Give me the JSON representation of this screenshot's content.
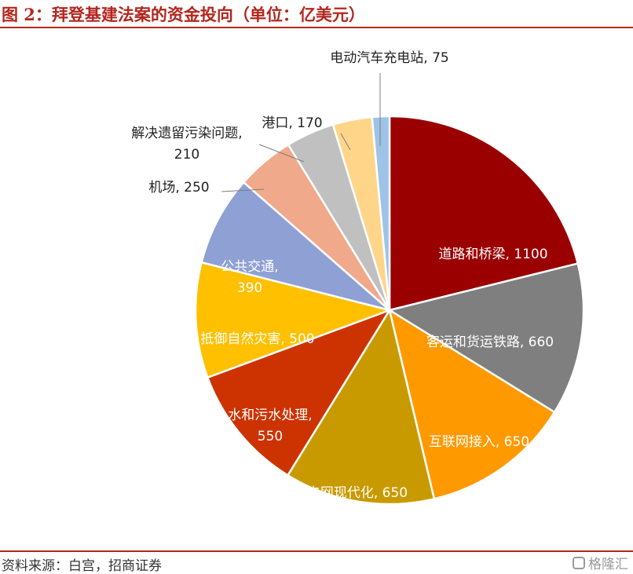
{
  "title": "图 2：拜登基建法案的资金投向（单位：亿美元）",
  "source": "资料来源：白宫，招商证券",
  "watermark": "格隆汇",
  "chart_data": {
    "type": "pie",
    "title": "图 2：拜登基建法案的资金投向（单位：亿美元）",
    "slices": [
      {
        "label": "道路和桥梁",
        "value": 1100,
        "color": "#9b0000",
        "label_color": "#ffffff",
        "lines": [
          "道路和桥梁, 1100"
        ]
      },
      {
        "label": "客运和货运铁路",
        "value": 660,
        "color": "#7f7f7f",
        "label_color": "#ffffff",
        "lines": [
          "客运和货运铁路, 660"
        ]
      },
      {
        "label": "互联网接入",
        "value": 650,
        "color": "#ff9900",
        "label_color": "#ffffff",
        "lines": [
          "互联网接入, 650"
        ]
      },
      {
        "label": "电网现代化",
        "value": 650,
        "color": "#c99a00",
        "label_color": "#ffffff",
        "lines": [
          "电网现代化, 650"
        ]
      },
      {
        "label": "水和污水处理",
        "value": 550,
        "color": "#cc3300",
        "label_color": "#ffffff",
        "lines": [
          "水和污水处理,",
          "550"
        ]
      },
      {
        "label": "抵御自然灾害",
        "value": 500,
        "color": "#ffc000",
        "label_color": "#ffffff",
        "lines": [
          "抵御自然灾害, 500"
        ]
      },
      {
        "label": "公共交通",
        "value": 390,
        "color": "#8ea0d4",
        "label_color": "#ffffff",
        "lines": [
          "公共交通,",
          "390"
        ]
      },
      {
        "label": "机场",
        "value": 250,
        "color": "#f0a98a",
        "label_color": "#222222",
        "lines": [
          "机场, 250"
        ]
      },
      {
        "label": "解决遗留污染问题",
        "value": 210,
        "color": "#c0c0c0",
        "label_color": "#222222",
        "lines": [
          "解决遗留污染问题,",
          "210"
        ]
      },
      {
        "label": "港口",
        "value": 170,
        "color": "#ffd58a",
        "label_color": "#222222",
        "lines": [
          "港口, 170"
        ]
      },
      {
        "label": "电动汽车充电站",
        "value": 75,
        "color": "#9dc3e6",
        "label_color": "#222222",
        "lines": [
          "电动汽车充电站, 75"
        ]
      }
    ]
  }
}
